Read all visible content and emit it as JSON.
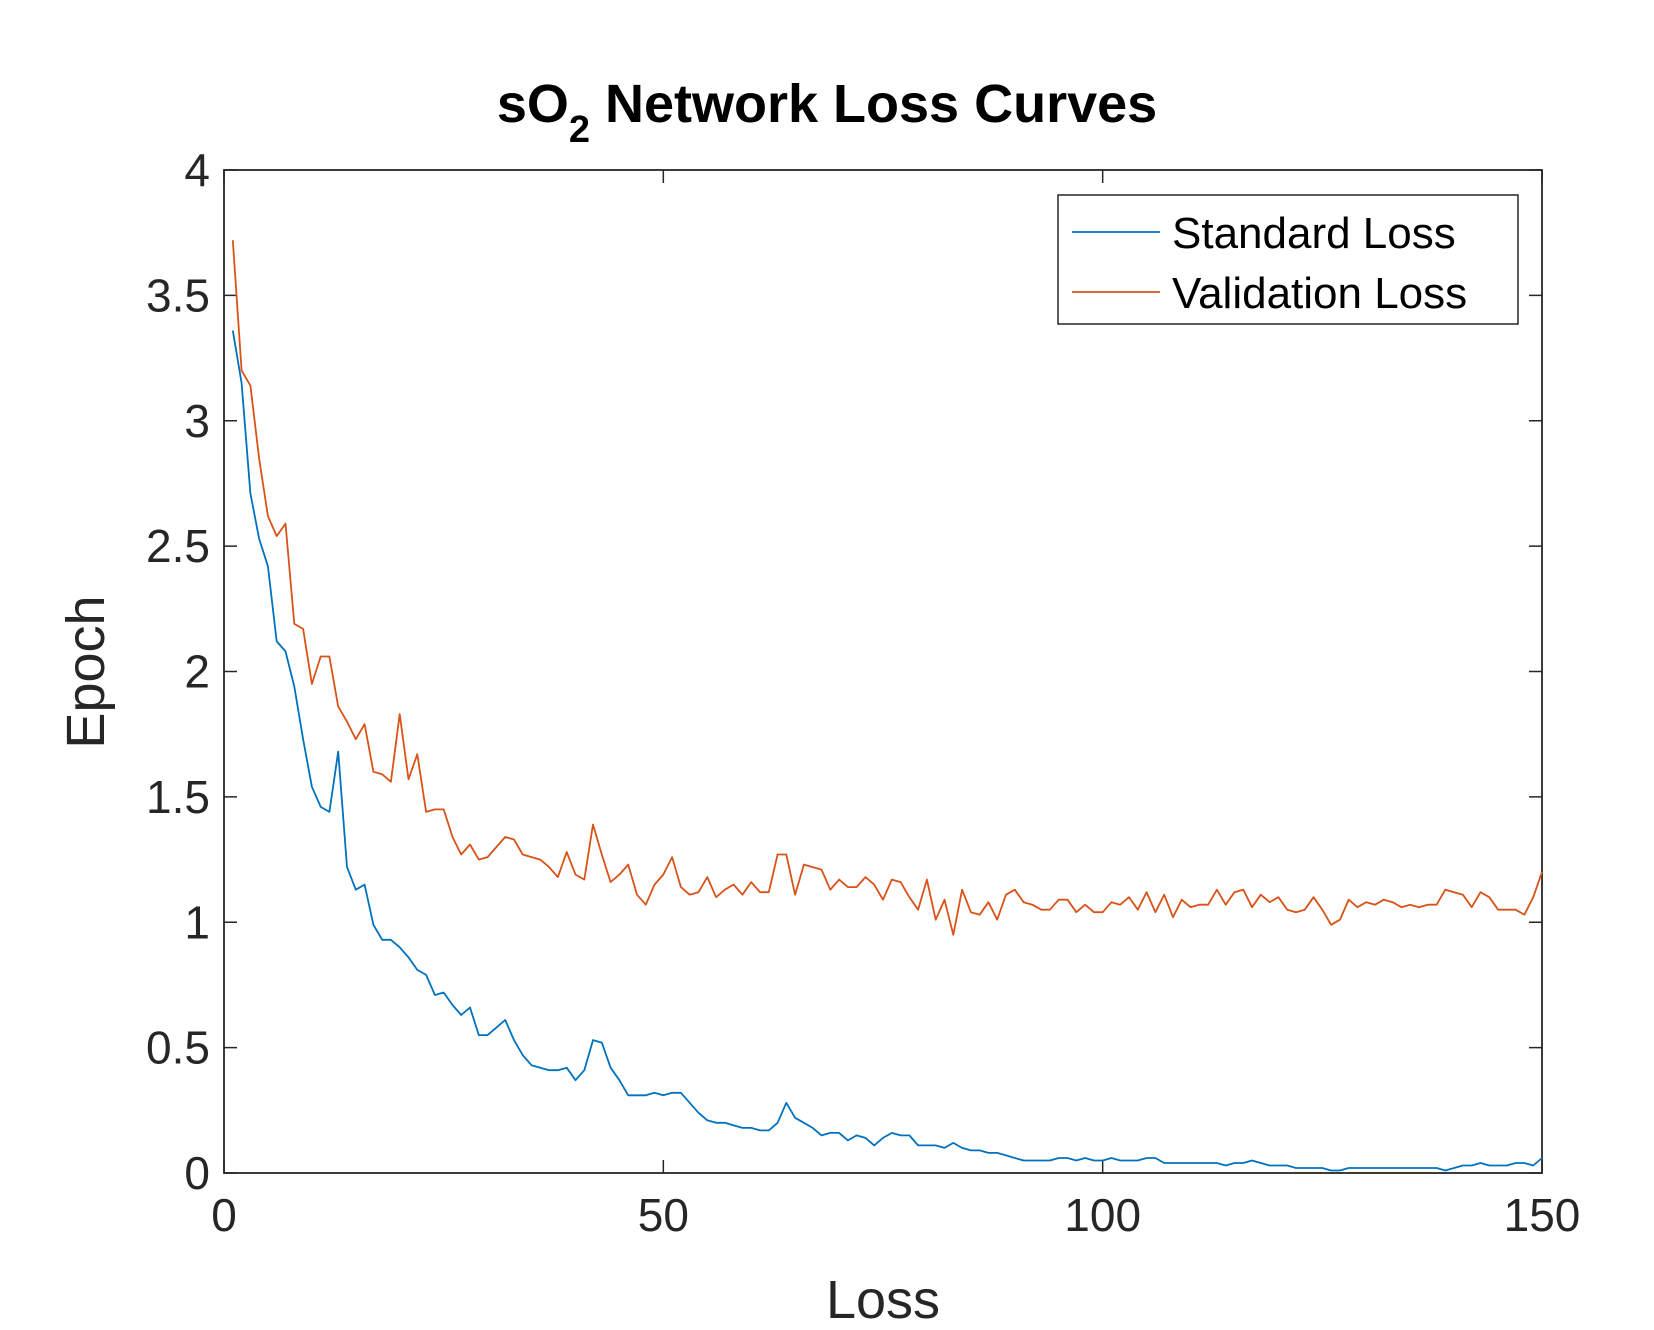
{
  "chart_data": {
    "type": "line",
    "title": "sO",
    "title_subscript": "2",
    "title_rest": " Network Loss Curves",
    "xlabel": "Loss",
    "ylabel": "Epoch",
    "xlim": [
      0,
      150
    ],
    "ylim": [
      0,
      4
    ],
    "xticks": [
      "0",
      "50",
      "100",
      "150"
    ],
    "yticks": [
      "0",
      "0.5",
      "1",
      "1.5",
      "2",
      "2.5",
      "3",
      "3.5",
      "4"
    ],
    "grid": false,
    "legend_position": "top-right",
    "series": [
      {
        "name": "Standard Loss",
        "color": "#0072BD",
        "x": [
          1,
          2,
          3,
          4,
          5,
          6,
          7,
          8,
          9,
          10,
          11,
          12,
          13,
          14,
          15,
          16,
          17,
          18,
          19,
          20,
          21,
          22,
          23,
          24,
          25,
          26,
          27,
          28,
          29,
          30,
          31,
          32,
          33,
          34,
          35,
          36,
          37,
          38,
          39,
          40,
          41,
          42,
          43,
          44,
          45,
          46,
          47,
          48,
          49,
          50,
          51,
          52,
          53,
          54,
          55,
          56,
          57,
          58,
          59,
          60,
          61,
          62,
          63,
          64,
          65,
          66,
          67,
          68,
          69,
          70,
          71,
          72,
          73,
          74,
          75,
          76,
          77,
          78,
          79,
          80,
          81,
          82,
          83,
          84,
          85,
          86,
          87,
          88,
          89,
          90,
          91,
          92,
          93,
          94,
          95,
          96,
          97,
          98,
          99,
          100,
          101,
          102,
          103,
          104,
          105,
          106,
          107,
          108,
          109,
          110,
          111,
          112,
          113,
          114,
          115,
          116,
          117,
          118,
          119,
          120,
          121,
          122,
          123,
          124,
          125,
          126,
          127,
          128,
          129,
          130,
          131,
          132,
          133,
          134,
          135,
          136,
          137,
          138,
          139,
          140,
          141,
          142,
          143,
          144,
          145,
          146,
          147,
          148,
          149,
          150
        ],
        "values": [
          3.36,
          3.15,
          2.71,
          2.53,
          2.42,
          2.12,
          2.08,
          1.94,
          1.73,
          1.54,
          1.46,
          1.44,
          1.68,
          1.22,
          1.13,
          1.15,
          0.99,
          0.93,
          0.93,
          0.9,
          0.86,
          0.81,
          0.79,
          0.71,
          0.72,
          0.67,
          0.63,
          0.66,
          0.55,
          0.55,
          0.58,
          0.61,
          0.53,
          0.47,
          0.43,
          0.42,
          0.41,
          0.41,
          0.42,
          0.37,
          0.41,
          0.53,
          0.52,
          0.42,
          0.37,
          0.31,
          0.31,
          0.31,
          0.32,
          0.31,
          0.32,
          0.32,
          0.28,
          0.24,
          0.21,
          0.2,
          0.2,
          0.19,
          0.18,
          0.18,
          0.17,
          0.17,
          0.2,
          0.28,
          0.22,
          0.2,
          0.18,
          0.15,
          0.16,
          0.16,
          0.13,
          0.15,
          0.14,
          0.11,
          0.14,
          0.16,
          0.15,
          0.15,
          0.11,
          0.11,
          0.11,
          0.1,
          0.12,
          0.1,
          0.09,
          0.09,
          0.08,
          0.08,
          0.07,
          0.06,
          0.05,
          0.05,
          0.05,
          0.05,
          0.06,
          0.06,
          0.05,
          0.06,
          0.05,
          0.05,
          0.06,
          0.05,
          0.05,
          0.05,
          0.06,
          0.06,
          0.04,
          0.04,
          0.04,
          0.04,
          0.04,
          0.04,
          0.04,
          0.03,
          0.04,
          0.04,
          0.05,
          0.04,
          0.03,
          0.03,
          0.03,
          0.02,
          0.02,
          0.02,
          0.02,
          0.01,
          0.01,
          0.02,
          0.02,
          0.02,
          0.02,
          0.02,
          0.02,
          0.02,
          0.02,
          0.02,
          0.02,
          0.02,
          0.01,
          0.02,
          0.03,
          0.03,
          0.04,
          0.03,
          0.03,
          0.03,
          0.04,
          0.04,
          0.03,
          0.06
        ]
      },
      {
        "name": "Validation Loss",
        "color": "#D95319",
        "x": [
          1,
          2,
          3,
          4,
          5,
          6,
          7,
          8,
          9,
          10,
          11,
          12,
          13,
          14,
          15,
          16,
          17,
          18,
          19,
          20,
          21,
          22,
          23,
          24,
          25,
          26,
          27,
          28,
          29,
          30,
          31,
          32,
          33,
          34,
          35,
          36,
          37,
          38,
          39,
          40,
          41,
          42,
          43,
          44,
          45,
          46,
          47,
          48,
          49,
          50,
          51,
          52,
          53,
          54,
          55,
          56,
          57,
          58,
          59,
          60,
          61,
          62,
          63,
          64,
          65,
          66,
          67,
          68,
          69,
          70,
          71,
          72,
          73,
          74,
          75,
          76,
          77,
          78,
          79,
          80,
          81,
          82,
          83,
          84,
          85,
          86,
          87,
          88,
          89,
          90,
          91,
          92,
          93,
          94,
          95,
          96,
          97,
          98,
          99,
          100,
          101,
          102,
          103,
          104,
          105,
          106,
          107,
          108,
          109,
          110,
          111,
          112,
          113,
          114,
          115,
          116,
          117,
          118,
          119,
          120,
          121,
          122,
          123,
          124,
          125,
          126,
          127,
          128,
          129,
          130,
          131,
          132,
          133,
          134,
          135,
          136,
          137,
          138,
          139,
          140,
          141,
          142,
          143,
          144,
          145,
          146,
          147,
          148,
          149,
          150
        ],
        "values": [
          3.72,
          3.2,
          3.14,
          2.85,
          2.62,
          2.54,
          2.59,
          2.19,
          2.17,
          1.95,
          2.06,
          2.06,
          1.86,
          1.8,
          1.73,
          1.79,
          1.6,
          1.59,
          1.56,
          1.83,
          1.57,
          1.67,
          1.44,
          1.45,
          1.45,
          1.34,
          1.27,
          1.31,
          1.25,
          1.26,
          1.3,
          1.34,
          1.33,
          1.27,
          1.26,
          1.25,
          1.22,
          1.18,
          1.28,
          1.19,
          1.17,
          1.39,
          1.27,
          1.16,
          1.19,
          1.23,
          1.11,
          1.07,
          1.15,
          1.19,
          1.26,
          1.14,
          1.11,
          1.12,
          1.18,
          1.1,
          1.13,
          1.15,
          1.11,
          1.16,
          1.12,
          1.12,
          1.27,
          1.27,
          1.11,
          1.23,
          1.22,
          1.21,
          1.13,
          1.17,
          1.14,
          1.14,
          1.18,
          1.15,
          1.09,
          1.17,
          1.16,
          1.1,
          1.05,
          1.17,
          1.01,
          1.09,
          0.95,
          1.13,
          1.04,
          1.03,
          1.08,
          1.01,
          1.11,
          1.13,
          1.08,
          1.07,
          1.05,
          1.05,
          1.09,
          1.09,
          1.04,
          1.07,
          1.04,
          1.04,
          1.08,
          1.07,
          1.1,
          1.05,
          1.12,
          1.04,
          1.11,
          1.02,
          1.09,
          1.06,
          1.07,
          1.07,
          1.13,
          1.07,
          1.12,
          1.13,
          1.06,
          1.11,
          1.08,
          1.1,
          1.05,
          1.04,
          1.05,
          1.1,
          1.05,
          0.99,
          1.01,
          1.09,
          1.06,
          1.08,
          1.07,
          1.09,
          1.08,
          1.06,
          1.07,
          1.06,
          1.07,
          1.07,
          1.13,
          1.12,
          1.11,
          1.06,
          1.12,
          1.1,
          1.05,
          1.05,
          1.05,
          1.03,
          1.1,
          1.2
        ]
      }
    ]
  }
}
